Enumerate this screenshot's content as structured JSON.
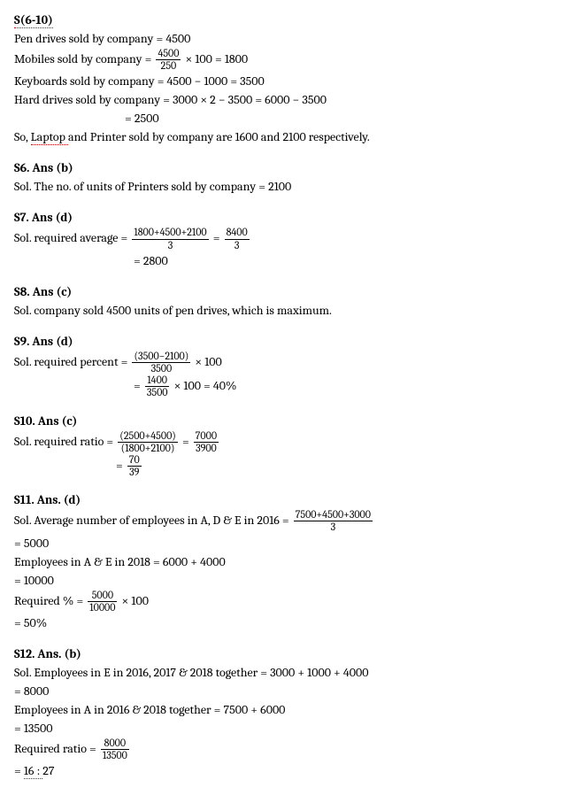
{
  "intro": {
    "title": "S(6-10)",
    "line1a": "Pen drives sold by company = ",
    "line1b": "4500",
    "line2a": "Mobiles sold by company = ",
    "line2_num": "4500",
    "line2_den": "250",
    "line2b": " × 100 = 1800",
    "line3": "Keyboards sold by company = 4500 − 1000 = 3500",
    "line4": "Hard drives sold by company = 3000 × 2 − 3500 = 6000 − 3500",
    "line4b": "= 2500",
    "line5a": "So, ",
    "line5_dotted": "Laptop ",
    "line5b": "and Printer sold by company are 1600 and 2100 respectively."
  },
  "s6": {
    "title": "S6. Ans (b)",
    "sol": "Sol. The no. of units of Printers sold by company = 2100"
  },
  "s7": {
    "title": "S7. Ans (d)",
    "sola": "Sol. required average = ",
    "num1": "1800+4500+2100",
    "den1": "3",
    "eq": " = ",
    "num2": "8400",
    "den2": "3",
    "line2": "= 2800"
  },
  "s8": {
    "title": "S8. Ans (c)",
    "sol": "Sol. company sold 4500 units of pen drives, which is maximum."
  },
  "s9": {
    "title": "S9. Ans (d)",
    "sola": "Sol. required percent = ",
    "num1": "(3500−2100)",
    "den1": "3500",
    "mult1": " × 100",
    "eq2a": "= ",
    "num2": "1400",
    "den2": "3500",
    "mult2": " × 100 = 40%"
  },
  "s10": {
    "title": "S10. Ans (c)",
    "sola": "Sol. required ratio = ",
    "num1": "(2500+4500)",
    "den1": "(1800+2100)",
    "eq1": " = ",
    "num2": "7000",
    "den2": "3900",
    "eq2a": "= ",
    "num3": "70",
    "den3": "39"
  },
  "s11": {
    "title": "S11. Ans. (d)",
    "sola": "Sol. Average number of employees in A, D & E in 2016 = ",
    "num1": "7500+4500+3000",
    "den1": "3",
    "l2": "= 5000",
    "l3": "Employees in A & E in 2018 = 6000 + 4000",
    "l4": "= 10000",
    "l5a": "Required % = ",
    "num2": "5000",
    "den2": "10000",
    "l5b": " × 100",
    "l6": "= 50%"
  },
  "s12": {
    "title": "S12. Ans. (b)",
    "l1": "Sol. Employees in E in 2016, 2017 & 2018 together = 3000 + 1000 + 4000",
    "l2": "= 8000",
    "l3": "Employees in A in 2016 & 2018 together = 7500 + 6000",
    "l4": "= 13500",
    "l5a": "Required ratio = ",
    "num1": "8000",
    "den1": "13500",
    "l6a": "= ",
    "l6_dotted": "16 : ",
    "l6b": "27"
  }
}
